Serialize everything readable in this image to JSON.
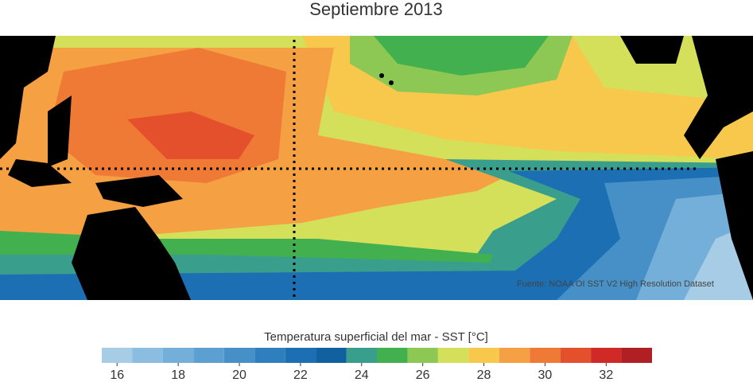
{
  "title": "Septiembre 2013",
  "source": "Fuente: NOAA OI SST V2 High Resolution Dataset",
  "colorbar": {
    "label": "Temperatura superficial del mar - SST  [°C]",
    "bins": [
      15.5,
      16.5,
      17.5,
      18.5,
      19.5,
      20.5,
      21.5,
      22.5,
      23.5,
      24.5,
      25.5,
      26.5,
      27.5,
      28.5,
      29.5,
      30.5,
      31.5,
      32.5,
      33.5
    ],
    "colors": [
      "#a6cce6",
      "#8bbde0",
      "#74afd9",
      "#5c9fd1",
      "#4690c7",
      "#2f7fbf",
      "#1c6fb3",
      "#11609f",
      "#3a9e8c",
      "#43b04f",
      "#8dc855",
      "#d4e05a",
      "#f8c84d",
      "#f5a043",
      "#ee7a35",
      "#e4502b",
      "#d02a27",
      "#b01f24"
    ],
    "ticks": [
      16,
      18,
      20,
      22,
      24,
      26,
      28,
      30,
      32
    ]
  }
}
